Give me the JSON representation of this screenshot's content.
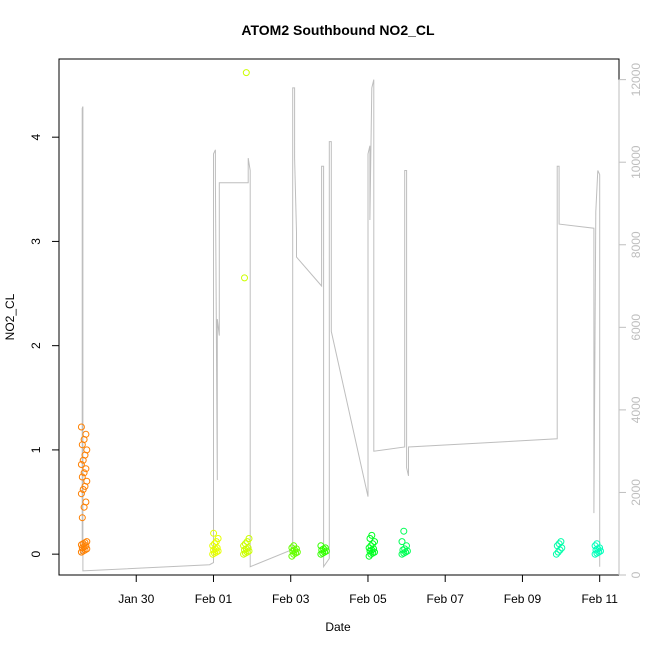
{
  "chart_data": {
    "type": "scatter",
    "title": "ATOM2 Southbound NO2_CL",
    "xlabel": "Date",
    "ylabel": "NO2_CL",
    "x_unit": "days since 2016-01-28 00:00",
    "x_ticks": [
      {
        "value": 2,
        "label": "Jan 30"
      },
      {
        "value": 4,
        "label": "Feb 01"
      },
      {
        "value": 6,
        "label": "Feb 03"
      },
      {
        "value": 8,
        "label": "Feb 05"
      },
      {
        "value": 10,
        "label": "Feb 07"
      },
      {
        "value": 12,
        "label": "Feb 09"
      },
      {
        "value": 14,
        "label": "Feb 11"
      }
    ],
    "xlim": [
      0.0,
      14.5
    ],
    "ylim": [
      -0.2,
      4.75
    ],
    "y_ticks": [
      0,
      1,
      2,
      3,
      4
    ],
    "ylabel_right": "",
    "y2lim": [
      0,
      12500
    ],
    "y2_ticks": [
      0,
      2000,
      4000,
      6000,
      8000,
      10000,
      12000
    ],
    "points": [
      {
        "day": 0.65,
        "values": [
          0.02,
          0.03,
          0.04,
          0.05,
          0.06,
          0.07,
          0.08,
          0.09,
          0.1,
          0.11,
          0.12,
          0.35,
          0.45,
          0.5,
          0.58,
          0.62,
          0.65,
          0.7,
          0.74,
          0.78,
          0.82,
          0.86,
          0.9,
          0.95,
          1.0,
          1.05,
          1.1,
          1.15,
          1.22
        ],
        "color": "#ff8000"
      },
      {
        "day": 4.05,
        "values": [
          0.0,
          0.01,
          0.02,
          0.03,
          0.04,
          0.05,
          0.06,
          0.08,
          0.1,
          0.12,
          0.15,
          0.2
        ],
        "color": "#e6ff00"
      },
      {
        "day": 4.85,
        "values": [
          0.0,
          0.01,
          0.02,
          0.03,
          0.04,
          0.05,
          0.06,
          0.08,
          0.1,
          0.12,
          0.15,
          2.65,
          4.62
        ],
        "color": "#ccff00"
      },
      {
        "day": 6.1,
        "values": [
          -0.02,
          0.0,
          0.01,
          0.02,
          0.03,
          0.04,
          0.05,
          0.06,
          0.08
        ],
        "color": "#66ff00"
      },
      {
        "day": 6.85,
        "values": [
          0.0,
          0.01,
          0.02,
          0.03,
          0.04,
          0.05,
          0.06,
          0.08
        ],
        "color": "#33ff00"
      },
      {
        "day": 8.1,
        "values": [
          -0.02,
          0.0,
          0.01,
          0.02,
          0.03,
          0.04,
          0.05,
          0.06,
          0.08,
          0.1,
          0.12,
          0.15,
          0.18
        ],
        "color": "#00ff22"
      },
      {
        "day": 8.95,
        "values": [
          0.0,
          0.01,
          0.02,
          0.03,
          0.04,
          0.05,
          0.08,
          0.12,
          0.22
        ],
        "color": "#00ff55"
      },
      {
        "day": 12.95,
        "values": [
          0.0,
          0.02,
          0.04,
          0.06,
          0.08,
          0.1,
          0.12
        ],
        "color": "#00ffaa"
      },
      {
        "day": 13.95,
        "values": [
          0.0,
          0.01,
          0.02,
          0.03,
          0.04,
          0.05,
          0.06,
          0.08,
          0.1
        ],
        "color": "#00ffbb"
      }
    ],
    "line_series": {
      "name": "",
      "axis": "right",
      "color": "#bebebe",
      "points": [
        [
          0.52,
          500
        ],
        [
          0.58,
          520
        ],
        [
          0.6,
          600
        ],
        [
          0.6,
          11300
        ],
        [
          0.62,
          11350
        ],
        [
          0.62,
          100
        ],
        [
          3.9,
          250
        ],
        [
          4.0,
          300
        ],
        [
          4.0,
          10200
        ],
        [
          4.05,
          10300
        ],
        [
          4.05,
          9600
        ],
        [
          4.1,
          2300
        ],
        [
          4.1,
          6200
        ],
        [
          4.15,
          5800
        ],
        [
          4.15,
          9500
        ],
        [
          4.9,
          9500
        ],
        [
          4.9,
          10100
        ],
        [
          4.95,
          9800
        ],
        [
          4.95,
          200
        ],
        [
          6.0,
          600
        ],
        [
          6.05,
          700
        ],
        [
          6.05,
          11800
        ],
        [
          6.1,
          11800
        ],
        [
          6.1,
          10100
        ],
        [
          6.15,
          8300
        ],
        [
          6.15,
          7700
        ],
        [
          6.8,
          7000
        ],
        [
          6.8,
          9900
        ],
        [
          6.85,
          9900
        ],
        [
          6.85,
          200
        ],
        [
          7.0,
          400
        ],
        [
          7.0,
          10500
        ],
        [
          7.05,
          10500
        ],
        [
          7.05,
          5900
        ],
        [
          8.0,
          1900
        ],
        [
          8.0,
          10200
        ],
        [
          8.05,
          10400
        ],
        [
          8.05,
          8600
        ],
        [
          8.1,
          11800
        ],
        [
          8.15,
          12000
        ],
        [
          8.15,
          3000
        ],
        [
          8.95,
          3100
        ],
        [
          8.95,
          9800
        ],
        [
          9.0,
          9800
        ],
        [
          9.0,
          2600
        ],
        [
          9.05,
          2400
        ],
        [
          9.05,
          3100
        ],
        [
          12.9,
          3300
        ],
        [
          12.9,
          9900
        ],
        [
          12.95,
          9900
        ],
        [
          12.95,
          8500
        ],
        [
          13.85,
          8400
        ],
        [
          13.85,
          1500
        ],
        [
          13.9,
          8800
        ],
        [
          13.95,
          9800
        ],
        [
          14.0,
          9700
        ],
        [
          14.0,
          200
        ]
      ]
    },
    "grid": false,
    "legend": "none"
  }
}
